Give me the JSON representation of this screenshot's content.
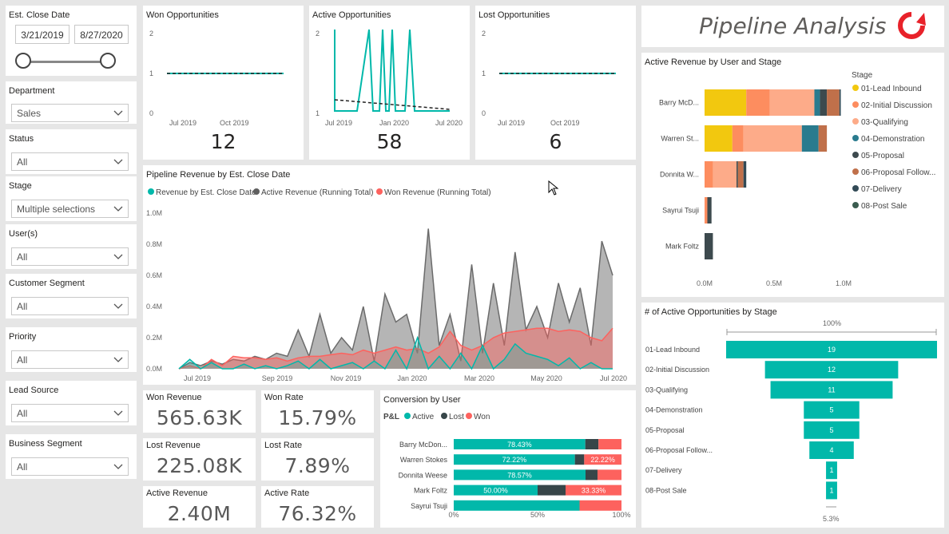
{
  "filters": {
    "close_date": {
      "label": "Est. Close Date",
      "start": "3/21/2019",
      "end": "8/27/2020"
    },
    "dropdowns": [
      {
        "label": "Department",
        "value": "Sales"
      },
      {
        "label": "Status",
        "value": "All"
      },
      {
        "label": "Stage",
        "value": "Multiple selections"
      },
      {
        "label": "User(s)",
        "value": "All"
      },
      {
        "label": "Customer Segment",
        "value": "All"
      },
      {
        "label": "Priority",
        "value": "All"
      },
      {
        "label": "Lead Source",
        "value": "All"
      },
      {
        "label": "Business Segment",
        "value": "All"
      }
    ]
  },
  "header": {
    "title": "Pipeline Analysis",
    "logo_icon": "refresh-arrow-icon",
    "accent": "#e8222a"
  },
  "minis": [
    {
      "title": "Won Opportunities",
      "count": "12",
      "y_ticks": [
        "2",
        "1",
        "0"
      ],
      "x_ticks": [
        "Jul 2019",
        "Oct 2019"
      ]
    },
    {
      "title": "Active Opportunities",
      "count": "58",
      "y_ticks": [
        "2",
        "1"
      ],
      "x_ticks": [
        "Jul 2019",
        "Jan 2020",
        "Jul 2020"
      ]
    },
    {
      "title": "Lost Opportunities",
      "count": "6",
      "y_ticks": [
        "2",
        "1",
        "0"
      ],
      "x_ticks": [
        "Jul 2019",
        "Oct 2019"
      ]
    }
  ],
  "kpis": [
    {
      "label": "Won Revenue",
      "value": "565.63K"
    },
    {
      "label": "Won Rate",
      "value": "15.79%"
    },
    {
      "label": "Lost Revenue",
      "value": "225.08K"
    },
    {
      "label": "Lost Rate",
      "value": "7.89%"
    },
    {
      "label": "Active Revenue",
      "value": "2.40M"
    },
    {
      "label": "Active Rate",
      "value": "76.32%"
    }
  ],
  "chart_data": [
    {
      "type": "area",
      "title": "Pipeline Revenue by Est. Close Date",
      "legend": [
        "Revenue by Est. Close Date",
        "Active Revenue (Running Total)",
        "Won Revenue (Running Total)"
      ],
      "colors": [
        "#01b8aa",
        "#5f5f5f",
        "#fd625e"
      ],
      "y_ticks": [
        "1.0M",
        "0.8M",
        "0.6M",
        "0.4M",
        "0.2M",
        "0.0M"
      ],
      "x_ticks": [
        "Jul 2019",
        "Sep 2019",
        "Nov 2019",
        "Jan 2020",
        "Mar 2020",
        "May 2020",
        "Jul 2020"
      ],
      "ylim": [
        0,
        1.0
      ],
      "series": [
        {
          "name": "Active Revenue (Running Total)",
          "values": [
            0.0,
            0.04,
            0.02,
            0.05,
            0.03,
            0.06,
            0.05,
            0.08,
            0.06,
            0.1,
            0.08,
            0.25,
            0.08,
            0.35,
            0.1,
            0.2,
            0.12,
            0.4,
            0.05,
            0.48,
            0.3,
            0.35,
            0.1,
            0.9,
            0.15,
            0.35,
            0.05,
            0.67,
            0.1,
            0.55,
            0.15,
            0.75,
            0.25,
            0.4,
            0.2,
            0.55,
            0.3,
            0.52,
            0.15,
            0.82,
            0.6
          ]
        },
        {
          "name": "Won Revenue (Running Total)",
          "values": [
            0.0,
            0.02,
            0.0,
            0.06,
            0.02,
            0.08,
            0.07,
            0.07,
            0.06,
            0.07,
            0.05,
            0.07,
            0.08,
            0.08,
            0.09,
            0.1,
            0.09,
            0.12,
            0.1,
            0.12,
            0.14,
            0.12,
            0.13,
            0.1,
            0.14,
            0.24,
            0.15,
            0.12,
            0.15,
            0.2,
            0.23,
            0.24,
            0.25,
            0.26,
            0.26,
            0.24,
            0.25,
            0.24,
            0.2,
            0.18,
            0.26
          ]
        },
        {
          "name": "Revenue by Est. Close Date",
          "values": [
            0.0,
            0.06,
            0.0,
            0.04,
            0.0,
            0.0,
            0.03,
            0.0,
            0.02,
            0.0,
            0.02,
            0.05,
            0.0,
            0.06,
            0.0,
            0.02,
            0.04,
            0.0,
            0.05,
            0.0,
            0.12,
            0.0,
            0.2,
            0.0,
            0.08,
            0.0,
            0.1,
            0.0,
            0.15,
            0.0,
            0.06,
            0.16,
            0.1,
            0.08,
            0.06,
            0.02,
            0.07,
            0.0,
            0.04,
            0.0,
            0.0
          ]
        }
      ]
    },
    {
      "type": "bar",
      "title": "Active Revenue by User and Stage",
      "legend_title": "Stage",
      "categories": [
        "Barry McD...",
        "Warren St...",
        "Donnita W...",
        "Sayrui Tsuji",
        "Mark Foltz"
      ],
      "x_ticks": [
        "0.0M",
        "0.5M",
        "1.0M"
      ],
      "xlim": [
        0,
        1.0
      ],
      "series": [
        {
          "name": "01-Lead Inbound",
          "color": "#f2c80f",
          "values": [
            0.3,
            0.2,
            0.0,
            0.0,
            0.0
          ]
        },
        {
          "name": "02-Initial Discussion",
          "color": "#fd8d5f",
          "values": [
            0.17,
            0.08,
            0.06,
            0.02,
            0.0
          ]
        },
        {
          "name": "03-Qualifying",
          "color": "#fdab89",
          "values": [
            0.32,
            0.42,
            0.17,
            0.0,
            0.0
          ]
        },
        {
          "name": "04-Demonstration",
          "color": "#2a7b8e",
          "values": [
            0.04,
            0.12,
            0.0,
            0.0,
            0.0
          ]
        },
        {
          "name": "05-Proposal",
          "color": "#3d4a4e",
          "values": [
            0.05,
            0.0,
            0.01,
            0.03,
            0.06
          ]
        },
        {
          "name": "06-Proposal Follow...",
          "color": "#c0704a",
          "values": [
            0.09,
            0.06,
            0.04,
            0.0,
            0.0
          ]
        },
        {
          "name": "07-Delivery",
          "color": "#324a56",
          "values": [
            0.01,
            0.0,
            0.02,
            0.0,
            0.0
          ]
        },
        {
          "name": "08-Post Sale",
          "color": "#3a5c4f",
          "values": [
            0.0,
            0.0,
            0.0,
            0.0,
            0.0
          ]
        }
      ]
    },
    {
      "type": "bar",
      "title": "# of Active Opportunities by Stage",
      "top_label": "100%",
      "bottom_label": "5.3%",
      "categories": [
        "01-Lead Inbound",
        "02-Initial Discussion",
        "03-Qualifying",
        "04-Demonstration",
        "05-Proposal",
        "06-Proposal Follow...",
        "07-Delivery",
        "08-Post Sale"
      ],
      "values": [
        19,
        12,
        11,
        5,
        5,
        4,
        1,
        1
      ],
      "color": "#01b8aa"
    },
    {
      "type": "bar",
      "title": "Conversion by User",
      "legend_prefix": "P&L",
      "legend": [
        "Active",
        "Lost",
        "Won"
      ],
      "colors": [
        "#01b8aa",
        "#374649",
        "#fd625e"
      ],
      "categories": [
        "Barry McDon...",
        "Warren Stokes",
        "Donnita Weese",
        "Mark Foltz",
        "Sayrui Tsuji"
      ],
      "x_ticks": [
        "0%",
        "50%",
        "100%"
      ],
      "series": [
        {
          "name": "Active",
          "values": [
            78.43,
            72.22,
            78.57,
            50.0,
            75.0
          ],
          "labels": [
            "78.43%",
            "72.22%",
            "78.57%",
            "50.00%",
            ""
          ]
        },
        {
          "name": "Lost",
          "values": [
            7.84,
            5.56,
            7.14,
            16.67,
            0.0
          ],
          "labels": [
            "",
            "",
            "",
            "",
            ""
          ]
        },
        {
          "name": "Won",
          "values": [
            13.73,
            22.22,
            14.29,
            33.33,
            25.0
          ],
          "labels": [
            "",
            "22.22%",
            "",
            "33.33%",
            ""
          ]
        }
      ]
    }
  ]
}
